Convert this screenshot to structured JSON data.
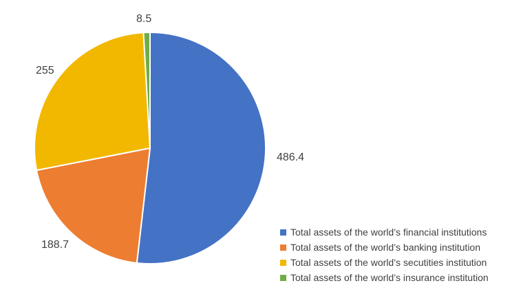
{
  "chart_data": {
    "type": "pie",
    "title": "",
    "start_angle_deg": 0,
    "direction": "clockwise",
    "legend_position": "bottom-right",
    "slices": [
      {
        "name": "Total assets of the world’s financial institutions",
        "value": 486.4,
        "label": "486.4",
        "color": "#4472C4"
      },
      {
        "name": "Total assets of the world’s banking institution",
        "value": 188.7,
        "label": "188.7",
        "color": "#ED7D31"
      },
      {
        "name": "Total assets of the world’s secutities institution",
        "value": 255,
        "label": "255",
        "color": "#F2B800"
      },
      {
        "name": "Total assets of the world’s insurance institution",
        "value": 8.5,
        "label": "8.5",
        "color": "#70AD47"
      }
    ]
  }
}
